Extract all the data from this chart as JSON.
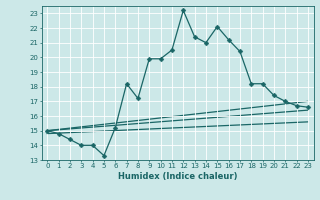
{
  "title": "",
  "xlabel": "Humidex (Indice chaleur)",
  "bg_color": "#cce8e8",
  "grid_color": "#ffffff",
  "line_color": "#1a6666",
  "xlim": [
    -0.5,
    23.5
  ],
  "ylim": [
    13,
    23.5
  ],
  "xticks": [
    0,
    1,
    2,
    3,
    4,
    5,
    6,
    7,
    8,
    9,
    10,
    11,
    12,
    13,
    14,
    15,
    16,
    17,
    18,
    19,
    20,
    21,
    22,
    23
  ],
  "yticks": [
    13,
    14,
    15,
    16,
    17,
    18,
    19,
    20,
    21,
    22,
    23
  ],
  "series1_x": [
    0,
    1,
    2,
    3,
    4,
    5,
    6,
    7,
    8,
    9,
    10,
    11,
    12,
    13,
    14,
    15,
    16,
    17,
    18,
    19,
    20,
    21,
    22,
    23
  ],
  "series1_y": [
    15.0,
    14.8,
    14.4,
    14.0,
    14.0,
    13.3,
    15.2,
    18.2,
    17.2,
    19.9,
    19.9,
    20.5,
    23.2,
    21.4,
    21.0,
    22.1,
    21.2,
    20.4,
    18.2,
    18.2,
    17.4,
    17.0,
    16.7,
    16.6
  ],
  "series2_x": [
    0,
    23
  ],
  "series2_y": [
    15.0,
    17.0
  ],
  "series3_x": [
    0,
    23
  ],
  "series3_y": [
    15.0,
    16.4
  ],
  "series4_x": [
    0,
    23
  ],
  "series4_y": [
    14.8,
    15.6
  ],
  "xlabel_fontsize": 6.0,
  "tick_fontsize": 5.0,
  "linewidth": 0.9,
  "markersize": 2.5
}
